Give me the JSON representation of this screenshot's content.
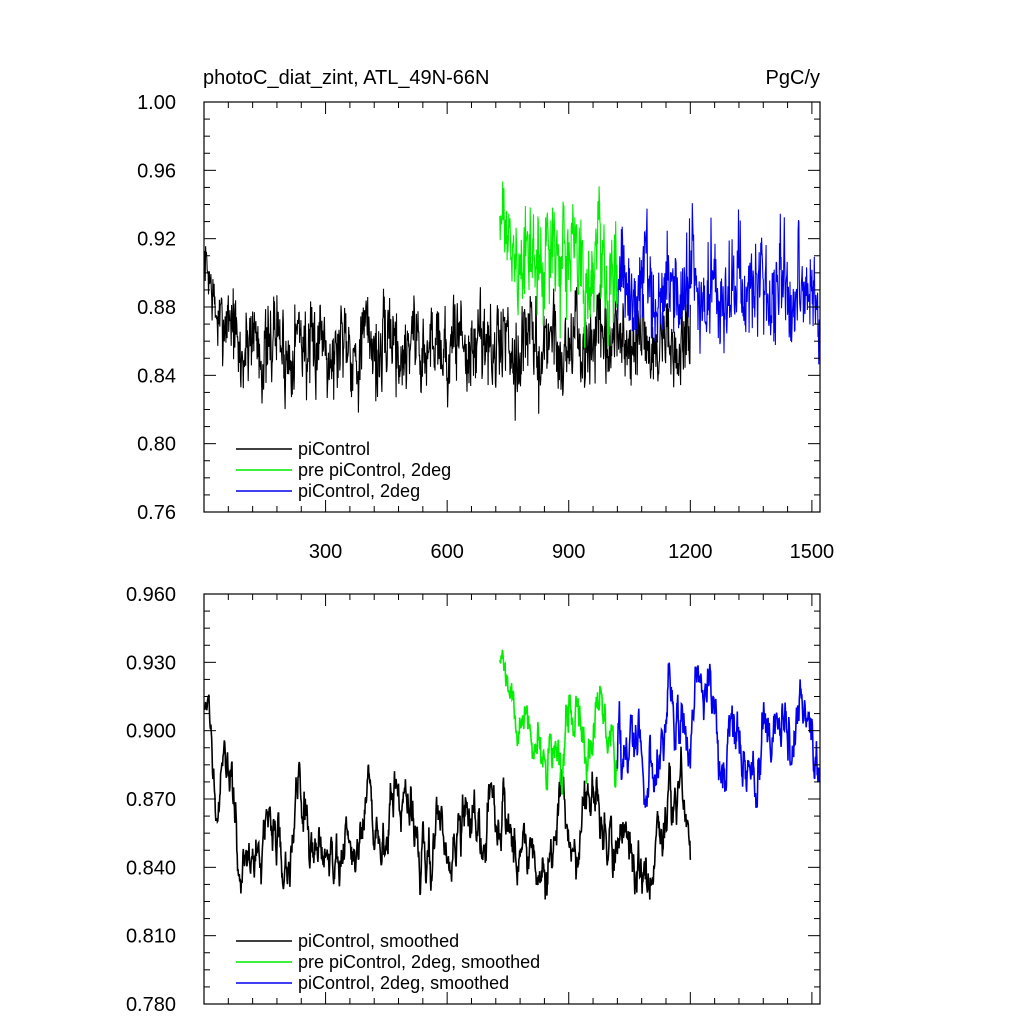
{
  "chart_data": [
    {
      "type": "line",
      "title": "photoC_diat_zint, ATL_49N-66N",
      "units": "PgC/y",
      "xlabel": "",
      "ylabel": "",
      "xlim": [
        0,
        1520
      ],
      "ylim": [
        0.76,
        1.0
      ],
      "x_ticks": [
        300,
        600,
        900,
        1200,
        1500
      ],
      "x_tick_labels": [
        "300",
        "600",
        "900",
        "1200",
        "1500"
      ],
      "y_ticks": [
        0.76,
        0.8,
        0.84,
        0.88,
        0.92,
        0.96,
        1.0
      ],
      "y_tick_labels": [
        "0.76",
        "0.80",
        "0.84",
        "0.88",
        "0.92",
        "0.96",
        "1.00"
      ],
      "legend_position": "bottom-left",
      "series": [
        {
          "name": "piControl",
          "color": "#000000",
          "x_range": [
            1,
            1200
          ],
          "mean": 0.858,
          "amplitude": 0.045,
          "start_level": 0.905,
          "start_decay": 40
        },
        {
          "name": "pre piControl, 2deg",
          "color": "#00ee00",
          "x_range": [
            730,
            1020
          ],
          "mean": 0.905,
          "amplitude": 0.055,
          "start_level": 0.93,
          "start_decay": 30
        },
        {
          "name": "piControl, 2deg",
          "color": "#0000ee",
          "x_range": [
            1020,
            1520
          ],
          "mean": 0.89,
          "amplitude": 0.05,
          "start_level": 0.89,
          "start_decay": 1
        }
      ]
    },
    {
      "type": "line",
      "title": "",
      "units": "",
      "xlabel": "",
      "ylabel": "",
      "xlim": [
        0,
        1520
      ],
      "ylim": [
        0.78,
        0.96
      ],
      "x_ticks": [
        300,
        600,
        900,
        1200,
        1500
      ],
      "y_ticks": [
        0.78,
        0.81,
        0.84,
        0.87,
        0.9,
        0.93,
        0.96
      ],
      "y_tick_labels": [
        "0.780",
        "0.810",
        "0.840",
        "0.870",
        "0.900",
        "0.930",
        "0.960"
      ],
      "legend_position": "bottom-left",
      "series": [
        {
          "name": "piControl, smoothed",
          "color": "#000000",
          "x_range": [
            1,
            1200
          ],
          "mean": 0.855,
          "amplitude": 0.018,
          "start_level": 0.905,
          "start_decay": 40
        },
        {
          "name": "pre piControl, 2deg, smoothed",
          "color": "#00ee00",
          "x_range": [
            730,
            1020
          ],
          "mean": 0.9,
          "amplitude": 0.017,
          "start_level": 0.92,
          "start_decay": 40
        },
        {
          "name": "piControl, 2deg, smoothed",
          "color": "#0000ee",
          "x_range": [
            1020,
            1520
          ],
          "mean": 0.895,
          "amplitude": 0.02,
          "start_level": 0.885,
          "start_decay": 1
        }
      ]
    }
  ]
}
